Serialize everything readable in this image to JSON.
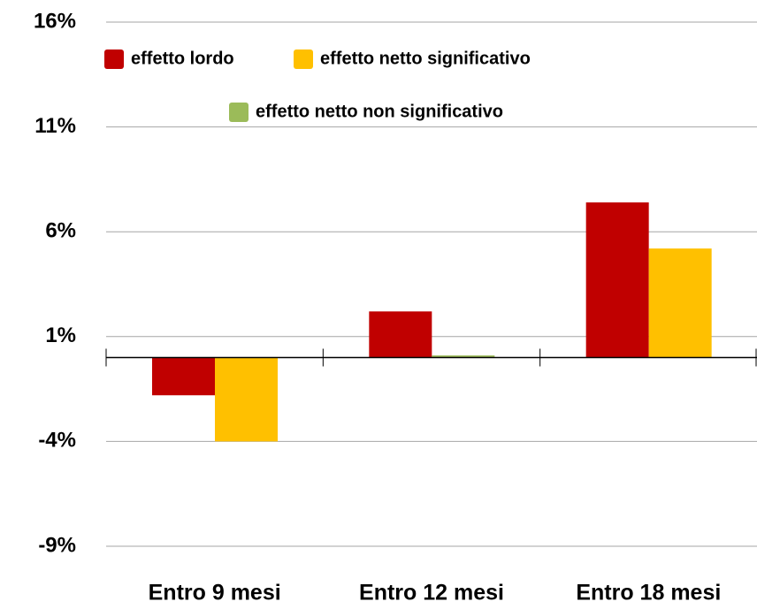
{
  "chart_data": {
    "type": "bar",
    "categories": [
      "Entro 9 mesi",
      "Entro 12 mesi",
      "Entro 18 mesi"
    ],
    "series": [
      {
        "name": "effetto lordo",
        "color": "#c00000",
        "values": [
          -1.8,
          2.2,
          7.4
        ]
      },
      {
        "name": "effetto netto significativo",
        "color": "#ffc000",
        "values": [
          -4.0,
          null,
          5.2
        ]
      },
      {
        "name": "effetto netto non significativo",
        "color": "#9bbb59",
        "values": [
          null,
          0.1,
          null
        ]
      }
    ],
    "ylim": [
      -9,
      16
    ],
    "yticks": [
      {
        "value": -9,
        "label": "-9%"
      },
      {
        "value": -4,
        "label": "-4%"
      },
      {
        "value": 1,
        "label": "1%"
      },
      {
        "value": 6,
        "label": "6%"
      },
      {
        "value": 11,
        "label": "11%"
      },
      {
        "value": 16,
        "label": "16%"
      }
    ],
    "grid": true
  }
}
